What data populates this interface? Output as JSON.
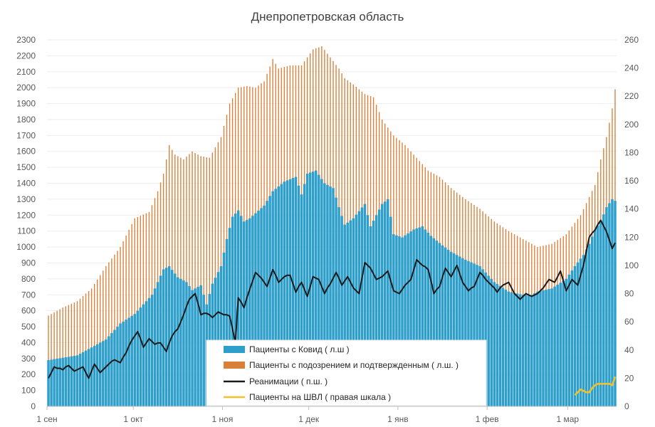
{
  "chart_data": {
    "type": "bar",
    "title": "Днепропетровская область",
    "x_tick_labels": [
      "1 сен",
      "1 окт",
      "1 ноя",
      "1 дек",
      "1 янв",
      "1 фев",
      "1 мар"
    ],
    "x_tick_day_index": [
      0,
      30,
      61,
      91,
      122,
      153,
      181
    ],
    "day_count": 198,
    "y_left": {
      "min": 0,
      "max": 2300,
      "step": 100
    },
    "y_right": {
      "min": 0,
      "max": 260,
      "step": 20
    },
    "series": [
      {
        "name": "Пациенты с Ковид ( л.ш )",
        "kind": "bar",
        "axis": "left",
        "color": "#2E9FCB",
        "keypoints": [
          [
            0,
            290
          ],
          [
            10,
            320
          ],
          [
            20,
            420
          ],
          [
            25,
            520
          ],
          [
            30,
            580
          ],
          [
            36,
            700
          ],
          [
            40,
            860
          ],
          [
            42,
            880
          ],
          [
            45,
            810
          ],
          [
            48,
            780
          ],
          [
            50,
            730
          ],
          [
            53,
            760
          ],
          [
            55,
            640
          ],
          [
            57,
            770
          ],
          [
            60,
            880
          ],
          [
            62,
            1050
          ],
          [
            64,
            1190
          ],
          [
            66,
            1230
          ],
          [
            68,
            1160
          ],
          [
            70,
            1180
          ],
          [
            75,
            1260
          ],
          [
            78,
            1350
          ],
          [
            82,
            1410
          ],
          [
            86,
            1440
          ],
          [
            88,
            1330
          ],
          [
            90,
            1460
          ],
          [
            93,
            1480
          ],
          [
            96,
            1400
          ],
          [
            99,
            1370
          ],
          [
            101,
            1250
          ],
          [
            103,
            1140
          ],
          [
            106,
            1180
          ],
          [
            110,
            1270
          ],
          [
            112,
            1130
          ],
          [
            114,
            1200
          ],
          [
            116,
            1270
          ],
          [
            118,
            1300
          ],
          [
            120,
            1080
          ],
          [
            123,
            1060
          ],
          [
            127,
            1110
          ],
          [
            130,
            1130
          ],
          [
            133,
            1070
          ],
          [
            137,
            1010
          ],
          [
            140,
            970
          ],
          [
            145,
            920
          ],
          [
            150,
            880
          ],
          [
            155,
            780
          ],
          [
            160,
            720
          ],
          [
            165,
            700
          ],
          [
            168,
            700
          ],
          [
            170,
            720
          ],
          [
            175,
            740
          ],
          [
            180,
            800
          ],
          [
            183,
            880
          ],
          [
            186,
            950
          ],
          [
            188,
            1020
          ],
          [
            190,
            1110
          ],
          [
            192,
            1160
          ],
          [
            194,
            1250
          ],
          [
            196,
            1300
          ],
          [
            197,
            1290
          ]
        ],
        "values": []
      },
      {
        "name": "Пациенты с подозрением и подтвержденным ( л.ш. )",
        "kind": "bar",
        "axis": "left",
        "color": "#D9803B",
        "keypoints": [
          [
            0,
            570
          ],
          [
            5,
            620
          ],
          [
            10,
            660
          ],
          [
            15,
            740
          ],
          [
            20,
            880
          ],
          [
            25,
            1000
          ],
          [
            30,
            1180
          ],
          [
            35,
            1220
          ],
          [
            38,
            1350
          ],
          [
            40,
            1460
          ],
          [
            42,
            1640
          ],
          [
            44,
            1580
          ],
          [
            47,
            1550
          ],
          [
            50,
            1600
          ],
          [
            53,
            1570
          ],
          [
            56,
            1560
          ],
          [
            60,
            1690
          ],
          [
            63,
            1900
          ],
          [
            66,
            2000
          ],
          [
            69,
            2010
          ],
          [
            72,
            2000
          ],
          [
            75,
            2040
          ],
          [
            78,
            2180
          ],
          [
            80,
            2120
          ],
          [
            84,
            2140
          ],
          [
            88,
            2140
          ],
          [
            92,
            2240
          ],
          [
            95,
            2260
          ],
          [
            98,
            2190
          ],
          [
            101,
            2120
          ],
          [
            103,
            2060
          ],
          [
            106,
            2020
          ],
          [
            110,
            1960
          ],
          [
            113,
            1940
          ],
          [
            116,
            1800
          ],
          [
            120,
            1700
          ],
          [
            124,
            1640
          ],
          [
            128,
            1560
          ],
          [
            132,
            1480
          ],
          [
            136,
            1440
          ],
          [
            140,
            1370
          ],
          [
            145,
            1300
          ],
          [
            150,
            1240
          ],
          [
            155,
            1160
          ],
          [
            160,
            1100
          ],
          [
            165,
            1050
          ],
          [
            170,
            1000
          ],
          [
            175,
            1020
          ],
          [
            180,
            1080
          ],
          [
            185,
            1200
          ],
          [
            190,
            1390
          ],
          [
            192,
            1550
          ],
          [
            194,
            1690
          ],
          [
            196,
            1870
          ],
          [
            197,
            1990
          ]
        ],
        "values": []
      },
      {
        "name": "Реанимации ( п.ш. )",
        "kind": "line",
        "axis": "right",
        "color": "#1A1A1A",
        "keypoints": [
          [
            0,
            20
          ],
          [
            2,
            28
          ],
          [
            5,
            26
          ],
          [
            7,
            29
          ],
          [
            9,
            25
          ],
          [
            12,
            28
          ],
          [
            14,
            20
          ],
          [
            16,
            30
          ],
          [
            18,
            24
          ],
          [
            21,
            30
          ],
          [
            23,
            33
          ],
          [
            25,
            31
          ],
          [
            27,
            38
          ],
          [
            29,
            47
          ],
          [
            31,
            53
          ],
          [
            33,
            42
          ],
          [
            35,
            48
          ],
          [
            37,
            44
          ],
          [
            39,
            45
          ],
          [
            41,
            39
          ],
          [
            43,
            50
          ],
          [
            45,
            55
          ],
          [
            47,
            65
          ],
          [
            49,
            76
          ],
          [
            51,
            80
          ],
          [
            53,
            65
          ],
          [
            55,
            66
          ],
          [
            57,
            63
          ],
          [
            59,
            67
          ],
          [
            61,
            65
          ],
          [
            63,
            64
          ],
          [
            65,
            45
          ],
          [
            66,
            77
          ],
          [
            68,
            70
          ],
          [
            70,
            83
          ],
          [
            72,
            95
          ],
          [
            74,
            91
          ],
          [
            76,
            85
          ],
          [
            78,
            97
          ],
          [
            80,
            88
          ],
          [
            82,
            92
          ],
          [
            84,
            93
          ],
          [
            86,
            81
          ],
          [
            88,
            88
          ],
          [
            90,
            78
          ],
          [
            92,
            92
          ],
          [
            94,
            90
          ],
          [
            96,
            80
          ],
          [
            98,
            87
          ],
          [
            100,
            95
          ],
          [
            102,
            86
          ],
          [
            104,
            92
          ],
          [
            106,
            84
          ],
          [
            108,
            80
          ],
          [
            110,
            102
          ],
          [
            112,
            98
          ],
          [
            114,
            90
          ],
          [
            116,
            92
          ],
          [
            118,
            96
          ],
          [
            120,
            82
          ],
          [
            122,
            80
          ],
          [
            124,
            86
          ],
          [
            126,
            90
          ],
          [
            128,
            104
          ],
          [
            130,
            100
          ],
          [
            132,
            97
          ],
          [
            134,
            80
          ],
          [
            136,
            85
          ],
          [
            138,
            98
          ],
          [
            140,
            92
          ],
          [
            142,
            100
          ],
          [
            144,
            88
          ],
          [
            146,
            82
          ],
          [
            148,
            85
          ],
          [
            150,
            95
          ],
          [
            152,
            90
          ],
          [
            154,
            86
          ],
          [
            156,
            81
          ],
          [
            158,
            86
          ],
          [
            160,
            88
          ],
          [
            162,
            80
          ],
          [
            164,
            76
          ],
          [
            166,
            80
          ],
          [
            168,
            78
          ],
          [
            170,
            80
          ],
          [
            172,
            84
          ],
          [
            174,
            90
          ],
          [
            176,
            88
          ],
          [
            178,
            96
          ],
          [
            180,
            82
          ],
          [
            182,
            90
          ],
          [
            184,
            86
          ],
          [
            186,
            100
          ],
          [
            188,
            120
          ],
          [
            190,
            125
          ],
          [
            192,
            132
          ],
          [
            194,
            124
          ],
          [
            196,
            112
          ],
          [
            197,
            116
          ]
        ],
        "values": []
      },
      {
        "name": "Пациенты на ШВЛ ( правая шкала )",
        "kind": "line",
        "axis": "right",
        "color": "#F2C12E",
        "keypoints": [
          [
            183,
            8
          ],
          [
            185,
            12
          ],
          [
            187,
            10
          ],
          [
            188,
            10
          ],
          [
            190,
            15
          ],
          [
            192,
            16
          ],
          [
            194,
            16
          ],
          [
            196,
            15
          ],
          [
            197,
            21
          ]
        ],
        "values": []
      }
    ]
  }
}
